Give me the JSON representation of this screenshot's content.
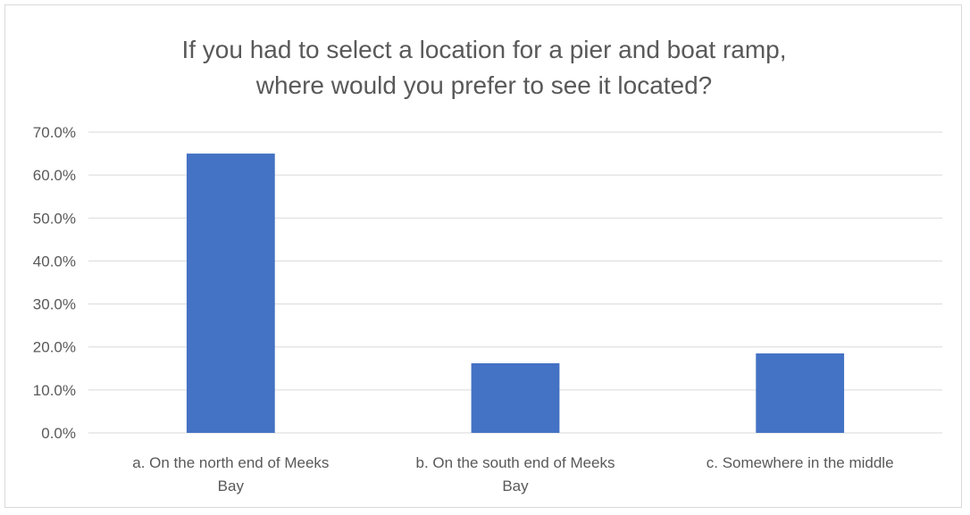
{
  "chart_data": {
    "type": "bar",
    "title": "If you had to select a location for a pier and boat ramp,\nwhere would you prefer to see it located?",
    "categories": [
      [
        "a.  On the north end of Meeks",
        "Bay"
      ],
      [
        "b.  On the south end of Meeks",
        "Bay"
      ],
      [
        "c.  Somewhere in the middle"
      ]
    ],
    "values": [
      65.0,
      16.2,
      18.5
    ],
    "ylim": [
      0,
      70
    ],
    "yticks": [
      0,
      10,
      20,
      30,
      40,
      50,
      60,
      70
    ],
    "ytick_labels": [
      "0.0%",
      "10.0%",
      "20.0%",
      "30.0%",
      "40.0%",
      "50.0%",
      "60.0%",
      "70.0%"
    ],
    "grid": true,
    "legend": "none",
    "bar_color": "#4472c4",
    "grid_color": "#d9d9d9"
  }
}
